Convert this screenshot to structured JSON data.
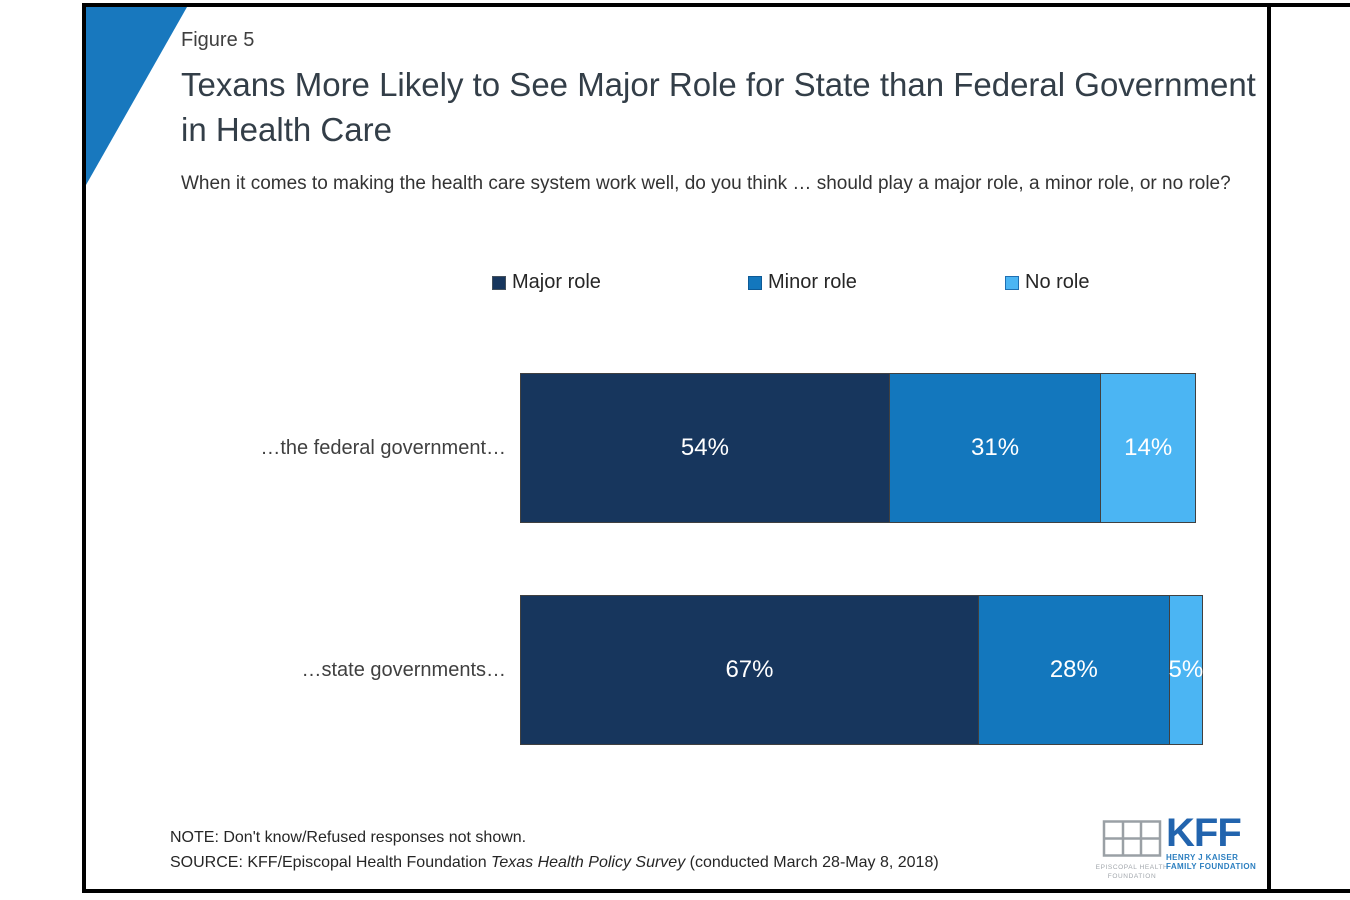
{
  "header": {
    "figure_label": "Figure 5",
    "title": "Texans More Likely to See Major Role for State than Federal Government in Health Care",
    "subtitle": "When it comes to making the health care system work well, do you think … should play a major role, a minor role, or no role?"
  },
  "chart_data": {
    "type": "bar",
    "variant": "horizontal-stacked",
    "categories": [
      "…the federal government…",
      "…state governments…"
    ],
    "series": [
      {
        "name": "Major role",
        "color": "#17365D",
        "legend_border": "#44505c",
        "values": [
          54,
          67
        ]
      },
      {
        "name": "Minor role",
        "color": "#1377BD",
        "legend_border": "#0d5a96",
        "values": [
          31,
          28
        ]
      },
      {
        "name": "No role",
        "color": "#4BB5F3",
        "legend_border": "#1f6fb2",
        "values": [
          14,
          5
        ]
      }
    ],
    "value_suffix": "%",
    "xlim": [
      0,
      100
    ],
    "legend_position": "top",
    "grid": false
  },
  "footer": {
    "note": "NOTE: Don't know/Refused responses not shown.",
    "source_prefix": "SOURCE: KFF/Episcopal Health Foundation ",
    "source_italic": "Texas Health Policy Survey",
    "source_suffix": " (conducted March 28-May 8, 2018)"
  },
  "logos": {
    "ehf_line1": "EPISCOPAL HEALTH",
    "ehf_line2": "FOUNDATION",
    "kff": "KFF",
    "kff_line1": "HENRY J KAISER",
    "kff_line2": "FAMILY FOUNDATION"
  },
  "colors": {
    "accent_triangle": "#1878BE",
    "frame": "#000000"
  }
}
